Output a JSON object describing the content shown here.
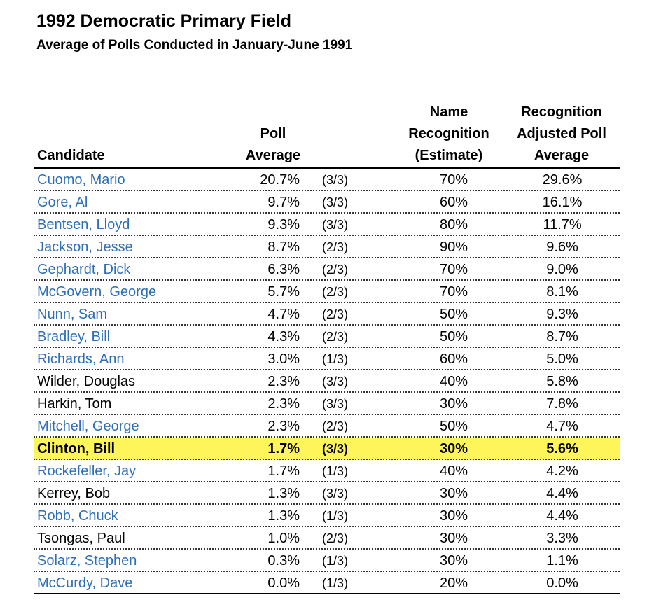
{
  "title": "1992 Democratic Primary Field",
  "subtitle": "Average of Polls Conducted in January-June 1991",
  "headers": {
    "candidate": "Candidate",
    "poll_average": [
      "Poll",
      "Average"
    ],
    "name_recognition": [
      "Name",
      "Recognition",
      "(Estimate)"
    ],
    "adjusted": [
      "Recognition",
      "Adjusted Poll",
      "Average"
    ]
  },
  "colors": {
    "link": "#2e6fb7",
    "highlight": "#fef55a"
  },
  "rows": [
    {
      "candidate": "Cuomo, Mario",
      "poll": "20.7%",
      "count": "(3/3)",
      "recognition": "70%",
      "adjusted": "29.6%",
      "link": true
    },
    {
      "candidate": "Gore, Al",
      "poll": "9.7%",
      "count": "(3/3)",
      "recognition": "60%",
      "adjusted": "16.1%",
      "link": true
    },
    {
      "candidate": "Bentsen, Lloyd",
      "poll": "9.3%",
      "count": "(3/3)",
      "recognition": "80%",
      "adjusted": "11.7%",
      "link": true
    },
    {
      "candidate": "Jackson, Jesse",
      "poll": "8.7%",
      "count": "(2/3)",
      "recognition": "90%",
      "adjusted": "9.6%",
      "link": true
    },
    {
      "candidate": "Gephardt, Dick",
      "poll": "6.3%",
      "count": "(2/3)",
      "recognition": "70%",
      "adjusted": "9.0%",
      "link": true
    },
    {
      "candidate": "McGovern, George",
      "poll": "5.7%",
      "count": "(2/3)",
      "recognition": "70%",
      "adjusted": "8.1%",
      "link": true
    },
    {
      "candidate": "Nunn, Sam",
      "poll": "4.7%",
      "count": "(2/3)",
      "recognition": "50%",
      "adjusted": "9.3%",
      "link": true
    },
    {
      "candidate": "Bradley, Bill",
      "poll": "4.3%",
      "count": "(2/3)",
      "recognition": "50%",
      "adjusted": "8.7%",
      "link": true
    },
    {
      "candidate": "Richards, Ann",
      "poll": "3.0%",
      "count": "(1/3)",
      "recognition": "60%",
      "adjusted": "5.0%",
      "link": true
    },
    {
      "candidate": "Wilder, Douglas",
      "poll": "2.3%",
      "count": "(3/3)",
      "recognition": "40%",
      "adjusted": "5.8%",
      "link": false
    },
    {
      "candidate": "Harkin, Tom",
      "poll": "2.3%",
      "count": "(3/3)",
      "recognition": "30%",
      "adjusted": "7.8%",
      "link": false
    },
    {
      "candidate": "Mitchell, George",
      "poll": "2.3%",
      "count": "(2/3)",
      "recognition": "50%",
      "adjusted": "4.7%",
      "link": true
    },
    {
      "candidate": "Clinton, Bill",
      "poll": "1.7%",
      "count": "(3/3)",
      "recognition": "30%",
      "adjusted": "5.6%",
      "link": false,
      "highlight": true
    },
    {
      "candidate": "Rockefeller, Jay",
      "poll": "1.7%",
      "count": "(1/3)",
      "recognition": "40%",
      "adjusted": "4.2%",
      "link": true
    },
    {
      "candidate": "Kerrey, Bob",
      "poll": "1.3%",
      "count": "(3/3)",
      "recognition": "30%",
      "adjusted": "4.4%",
      "link": false
    },
    {
      "candidate": "Robb, Chuck",
      "poll": "1.3%",
      "count": "(1/3)",
      "recognition": "30%",
      "adjusted": "4.4%",
      "link": true
    },
    {
      "candidate": "Tsongas, Paul",
      "poll": "1.0%",
      "count": "(2/3)",
      "recognition": "30%",
      "adjusted": "3.3%",
      "link": false
    },
    {
      "candidate": "Solarz, Stephen",
      "poll": "0.3%",
      "count": "(1/3)",
      "recognition": "30%",
      "adjusted": "1.1%",
      "link": true
    },
    {
      "candidate": "McCurdy, Dave",
      "poll": "0.0%",
      "count": "(1/3)",
      "recognition": "20%",
      "adjusted": "0.0%",
      "link": true
    }
  ]
}
